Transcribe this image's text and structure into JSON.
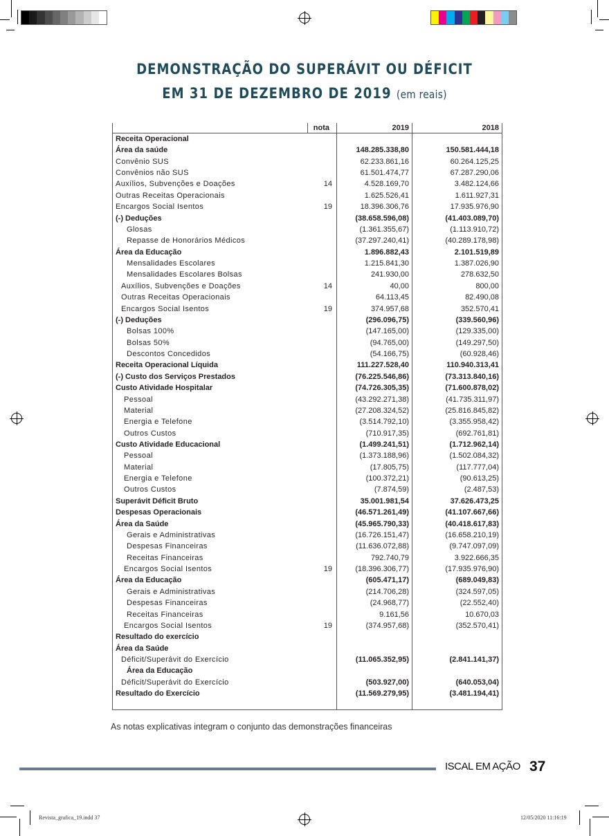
{
  "print_marks": {
    "gray_swatches": [
      "#000000",
      "#1a1a1a",
      "#333333",
      "#4d4d4d",
      "#666666",
      "#808080",
      "#999999",
      "#b3b3b3",
      "#cccccc",
      "#e6e6e6",
      "#ffffff"
    ],
    "color_swatches": [
      "#fff200",
      "#ec008c",
      "#00aeef",
      "#2e3192",
      "#00a651",
      "#ed1c24",
      "#231f20",
      "#fff799",
      "#f49ac1",
      "#7accf0",
      "#8c8c8c"
    ],
    "slug_file": "Revista_grafica_19.indd   37",
    "slug_date": "12/05/2020   11:16:19"
  },
  "colors": {
    "title": "#1f4a5a",
    "footer_bar": "#6a7b8c"
  },
  "title": {
    "line1": "DEMONSTRAÇÃO DO SUPERÁVIT OU DÉFICIT",
    "line2": "EM 31 DE DEZEMBRO DE 2019",
    "unit": "(em reais)"
  },
  "table": {
    "headers": {
      "nota": "nota",
      "y2019": "2019",
      "y2018": "2018"
    },
    "rows": [
      {
        "label": "Receita Operacional",
        "nota": "",
        "v2019": "",
        "v2018": "",
        "bold": true,
        "indent": 0
      },
      {
        "label": "Área da saúde",
        "nota": "",
        "v2019": "148.285.338,80",
        "v2018": "150.581.444,18",
        "bold": true,
        "indent": 0
      },
      {
        "label": "Convênio SUS",
        "nota": "",
        "v2019": "62.233.861,16",
        "v2018": "60.264.125,25",
        "bold": false,
        "indent": 0
      },
      {
        "label": "Convênios não SUS",
        "nota": "",
        "v2019": "61.501.474,77",
        "v2018": "67.287.290,06",
        "bold": false,
        "indent": 0
      },
      {
        "label": "Auxílios, Subvenções e Doações",
        "nota": "14",
        "v2019": "4.528.169,70",
        "v2018": "3.482.124,66",
        "bold": false,
        "indent": 0
      },
      {
        "label": "Outras Receitas Operacionais",
        "nota": "",
        "v2019": "1.625.526,41",
        "v2018": "1.611.927,31",
        "bold": false,
        "indent": 0
      },
      {
        "label": "Encargos Social Isentos",
        "nota": "19",
        "v2019": "18.396.306,76",
        "v2018": "17.935.976,90",
        "bold": false,
        "indent": 0
      },
      {
        "label": "(-) Deduções",
        "nota": "",
        "v2019": "(38.658.596,08)",
        "v2018": "(41.403.089,70)",
        "bold": true,
        "indent": 0
      },
      {
        "label": "Glosas",
        "nota": "",
        "v2019": "(1.361.355,67)",
        "v2018": "(1.113.910,72)",
        "bold": false,
        "indent": 2
      },
      {
        "label": "Repasse de Honorários Médicos",
        "nota": "",
        "v2019": "(37.297.240,41)",
        "v2018": "(40.289.178,98)",
        "bold": false,
        "indent": 2
      },
      {
        "label": "Área da Educação",
        "nota": "",
        "v2019": "1.896.882,43",
        "v2018": "2.101.519,89",
        "bold": true,
        "indent": 0
      },
      {
        "label": "Mensalidades Escolares",
        "nota": "",
        "v2019": "1.215.841,30",
        "v2018": "1.387.026,90",
        "bold": false,
        "indent": 2
      },
      {
        "label": "Mensalidades Escolares Bolsas",
        "nota": "",
        "v2019": "241.930,00",
        "v2018": "278.632,50",
        "bold": false,
        "indent": 2
      },
      {
        "label": "Auxílios, Subvenções e Doações",
        "nota": "14",
        "v2019": "40,00",
        "v2018": "800,00",
        "bold": false,
        "indent": 1
      },
      {
        "label": "Outras Receitas Operacionais",
        "nota": "",
        "v2019": "64.113,45",
        "v2018": "82.490,08",
        "bold": false,
        "indent": 1
      },
      {
        "label": "Encargos Social Isentos",
        "nota": "19",
        "v2019": "374.957,68",
        "v2018": "352.570,41",
        "bold": false,
        "indent": 1
      },
      {
        "label": "(-) Deduções",
        "nota": "",
        "v2019": "(296.096,75)",
        "v2018": "(339.560,96)",
        "bold": true,
        "indent": 0
      },
      {
        "label": "Bolsas 100%",
        "nota": "",
        "v2019": "(147.165,00)",
        "v2018": "(129.335,00)",
        "bold": false,
        "indent": 2
      },
      {
        "label": "Bolsas 50%",
        "nota": "",
        "v2019": "(94.765,00)",
        "v2018": "(149.297,50)",
        "bold": false,
        "indent": 2
      },
      {
        "label": "Descontos Concedidos",
        "nota": "",
        "v2019": "(54.166,75)",
        "v2018": "(60.928,46)",
        "bold": false,
        "indent": 2
      },
      {
        "label": "Receita Operacional Líquida",
        "nota": "",
        "v2019": "111.227.528,40",
        "v2018": "110.940.313,41",
        "bold": true,
        "indent": 0
      },
      {
        "label": "(-) Custo dos Serviços Prestados",
        "nota": "",
        "v2019": "(76.225.546,86)",
        "v2018": "(73.313.840,16)",
        "bold": true,
        "indent": 0
      },
      {
        "label": "Custo Atividade Hospitalar",
        "nota": "",
        "v2019": "(74.726.305,35)",
        "v2018": "(71.600.878,02)",
        "bold": true,
        "indent": 0
      },
      {
        "label": "Pessoal",
        "nota": "",
        "v2019": "(43.292.271,38)",
        "v2018": "(41.735.311,97)",
        "bold": false,
        "indent": 1.5
      },
      {
        "label": "Material",
        "nota": "",
        "v2019": "(27.208.324,52)",
        "v2018": "(25.816.845,82)",
        "bold": false,
        "indent": 1.5
      },
      {
        "label": "Energia e Telefone",
        "nota": "",
        "v2019": "(3.514.792,10)",
        "v2018": "(3.355.958,42)",
        "bold": false,
        "indent": 1.5
      },
      {
        "label": "Outros Custos",
        "nota": "",
        "v2019": "(710.917,35)",
        "v2018": "(692.761,81)",
        "bold": false,
        "indent": 1.5
      },
      {
        "label": "Custo Atividade Educacional",
        "nota": "",
        "v2019": "(1.499.241,51)",
        "v2018": "(1.712.962,14)",
        "bold": true,
        "indent": 0
      },
      {
        "label": "Pessoal",
        "nota": "",
        "v2019": "(1.373.188,96)",
        "v2018": "(1.502.084,32)",
        "bold": false,
        "indent": 1.5
      },
      {
        "label": "Material",
        "nota": "",
        "v2019": "(17.805,75)",
        "v2018": "(117.777,04)",
        "bold": false,
        "indent": 1.5
      },
      {
        "label": "Energia e Telefone",
        "nota": "",
        "v2019": "(100.372,21)",
        "v2018": "(90.613,25)",
        "bold": false,
        "indent": 1.5
      },
      {
        "label": "Outros Custos",
        "nota": "",
        "v2019": "(7.874,59)",
        "v2018": "(2.487,53)",
        "bold": false,
        "indent": 1.5
      },
      {
        "label": "Superávit Déficit Bruto",
        "nota": "",
        "v2019": "35.001.981,54",
        "v2018": "37.626.473,25",
        "bold": true,
        "indent": 0
      },
      {
        "label": "Despesas Operacionais",
        "nota": "",
        "v2019": "(46.571.261,49)",
        "v2018": "(41.107.667,66)",
        "bold": true,
        "indent": 0
      },
      {
        "label": "Área da Saúde",
        "nota": "",
        "v2019": "(45.965.790,33)",
        "v2018": "(40.418.617,83)",
        "bold": true,
        "indent": 0
      },
      {
        "label": "Gerais e Administrativas",
        "nota": "",
        "v2019": "(16.726.151,47)",
        "v2018": "(16.658.210,19)",
        "bold": false,
        "indent": 2
      },
      {
        "label": "Despesas Financeiras",
        "nota": "",
        "v2019": "(11.636.072,88)",
        "v2018": "(9.747.097,09)",
        "bold": false,
        "indent": 2
      },
      {
        "label": "Receitas Financeiras",
        "nota": "",
        "v2019": "792.740,79",
        "v2018": "3.922.666,35",
        "bold": false,
        "indent": 2
      },
      {
        "label": "Encargos Social Isentos",
        "nota": "19",
        "v2019": "(18.396.306,77)",
        "v2018": "(17.935.976,90)",
        "bold": false,
        "indent": 1.5
      },
      {
        "label": "Área da Educação",
        "nota": "",
        "v2019": "(605.471,17)",
        "v2018": "(689.049,83)",
        "bold": true,
        "indent": 0
      },
      {
        "label": "Gerais e Administrativas",
        "nota": "",
        "v2019": "(214.706,28)",
        "v2018": "(324.597,05)",
        "bold": false,
        "indent": 2
      },
      {
        "label": "Despesas Financeiras",
        "nota": "",
        "v2019": "(24.968,77)",
        "v2018": "(22.552,40)",
        "bold": false,
        "indent": 2
      },
      {
        "label": "Receitas Financeiras",
        "nota": "",
        "v2019": "9.161,56",
        "v2018": "10.670,03",
        "bold": false,
        "indent": 2
      },
      {
        "label": "Encargos Social Isentos",
        "nota": "19",
        "v2019": "(374.957,68)",
        "v2018": "(352.570,41)",
        "bold": false,
        "indent": 1.5
      },
      {
        "label": "Resultado do exercício",
        "nota": "",
        "v2019": "",
        "v2018": "",
        "bold": true,
        "indent": 0
      },
      {
        "label": "Área da Saúde",
        "nota": "",
        "v2019": "",
        "v2018": "",
        "bold": true,
        "indent": 0
      },
      {
        "label": "Déficit/Superávit do Exercício",
        "nota": "",
        "v2019": "(11.065.352,95)",
        "v2018": "(2.841.141,37)",
        "bold": false,
        "bold_values": true,
        "indent": 1
      },
      {
        "label": "Área da Educação",
        "nota": "",
        "v2019": "",
        "v2018": "",
        "bold": true,
        "indent": 2
      },
      {
        "label": "Déficit/Superávit do Exercício",
        "nota": "",
        "v2019": "(503.927,00)",
        "v2018": "(640.053,04)",
        "bold": false,
        "bold_values": true,
        "indent": 1
      },
      {
        "label": "Resultado do Exercício",
        "nota": "",
        "v2019": "(11.569.279,95)",
        "v2018": "(3.481.194,41)",
        "bold": true,
        "indent": 0
      }
    ]
  },
  "footnote": "As notas explicativas integram o conjunto das demonstrações financeiras",
  "footer": {
    "logo": "ISCAL EM AÇÃO",
    "page_number": "37"
  }
}
